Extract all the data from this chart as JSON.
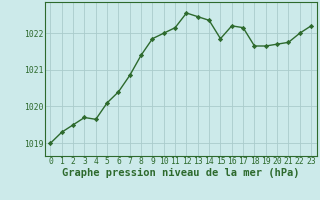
{
  "x": [
    0,
    1,
    2,
    3,
    4,
    5,
    6,
    7,
    8,
    9,
    10,
    11,
    12,
    13,
    14,
    15,
    16,
    17,
    18,
    19,
    20,
    21,
    22,
    23
  ],
  "y": [
    1019.0,
    1019.3,
    1019.5,
    1019.7,
    1019.65,
    1020.1,
    1020.4,
    1020.85,
    1021.4,
    1021.85,
    1022.0,
    1022.15,
    1022.55,
    1022.45,
    1022.35,
    1021.85,
    1022.2,
    1022.15,
    1021.65,
    1021.65,
    1021.7,
    1021.75,
    1022.0,
    1022.2
  ],
  "line_color": "#2d6a2d",
  "marker": "D",
  "marker_size": 2.2,
  "bg_color": "#cceaea",
  "grid_color": "#aacccc",
  "axis_color": "#2d6a2d",
  "xlabel": "Graphe pression niveau de la mer (hPa)",
  "xlabel_fontsize": 7.5,
  "ylabel_ticks": [
    1019,
    1020,
    1021,
    1022
  ],
  "xlim": [
    -0.5,
    23.5
  ],
  "ylim": [
    1018.65,
    1022.85
  ],
  "xticks": [
    0,
    1,
    2,
    3,
    4,
    5,
    6,
    7,
    8,
    9,
    10,
    11,
    12,
    13,
    14,
    15,
    16,
    17,
    18,
    19,
    20,
    21,
    22,
    23
  ],
  "tick_fontsize": 5.8,
  "linewidth": 1.0
}
